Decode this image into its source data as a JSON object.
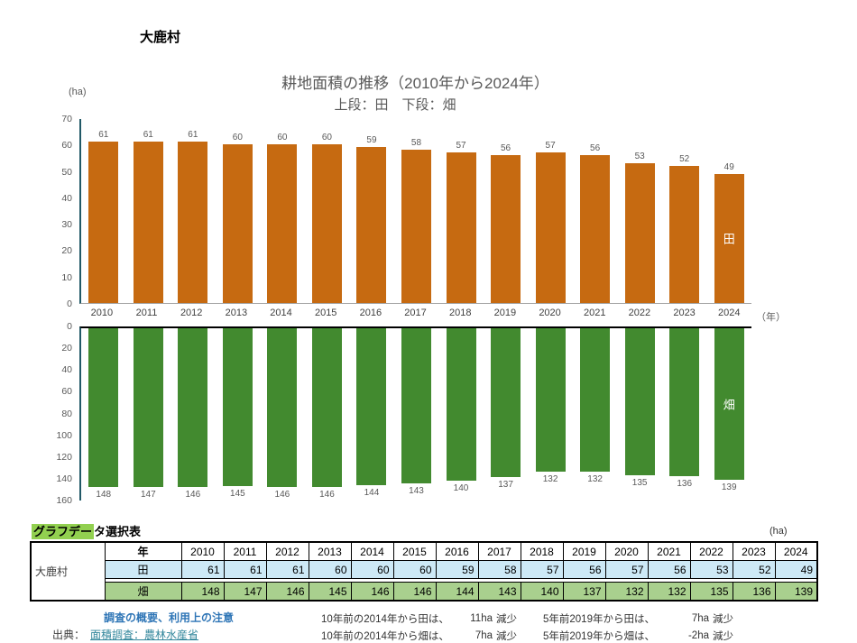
{
  "page": {
    "village": "大鹿村",
    "year_axis_label": "（年）"
  },
  "chart_data": {
    "type": "bar",
    "title": "耕地面積の推移（2010年から2024年）",
    "subtitle": "上段：田　下段：畑",
    "unit": "(ha)",
    "xlabel": "（年）",
    "grid": false,
    "legend_position": "inside-last-bar",
    "categories": [
      "2010",
      "2011",
      "2012",
      "2013",
      "2014",
      "2015",
      "2016",
      "2017",
      "2018",
      "2019",
      "2020",
      "2021",
      "2022",
      "2023",
      "2024"
    ],
    "series": [
      {
        "name": "田",
        "values": [
          61,
          61,
          61,
          60,
          60,
          60,
          59,
          58,
          57,
          56,
          57,
          56,
          53,
          52,
          49
        ],
        "color": "#C66A11",
        "ylim": [
          0,
          70
        ],
        "ticks": [
          0,
          10,
          20,
          30,
          40,
          50,
          60,
          70
        ],
        "inverted": false
      },
      {
        "name": "畑",
        "values": [
          148,
          147,
          146,
          145,
          146,
          146,
          144,
          143,
          140,
          137,
          132,
          132,
          135,
          136,
          139
        ],
        "color": "#428A2F",
        "ylim": [
          0,
          160
        ],
        "ticks": [
          0,
          20,
          40,
          60,
          80,
          100,
          120,
          140,
          160
        ],
        "inverted": true
      }
    ]
  },
  "table": {
    "title_highlight": "グラフデー",
    "title_rest": "タ選択表",
    "unit": "(ha)",
    "village": "大鹿村",
    "year_label": "年",
    "years": [
      "2010",
      "2011",
      "2012",
      "2013",
      "2014",
      "2015",
      "2016",
      "2017",
      "2018",
      "2019",
      "2020",
      "2021",
      "2022",
      "2023",
      "2024"
    ],
    "rows": [
      {
        "label": "田",
        "values": [
          61,
          61,
          61,
          60,
          60,
          60,
          59,
          58,
          57,
          56,
          57,
          56,
          53,
          52,
          49
        ]
      },
      {
        "label": "畑",
        "values": [
          148,
          147,
          146,
          145,
          146,
          146,
          144,
          143,
          140,
          137,
          132,
          132,
          135,
          136,
          139
        ]
      }
    ]
  },
  "footer": {
    "survey_link": "調査の概要、利用上の注意",
    "source_label": "出典：",
    "source_link": "面積調査：農林水産省",
    "notes": [
      [
        "10年前の2014年から田は、",
        "11ha",
        "減少",
        "5年前2019年から田は、",
        "7ha",
        "減少"
      ],
      [
        "10年前の2014年から畑は、",
        "7ha",
        "減少",
        "5年前2019年から畑は、",
        "-2ha",
        "減少"
      ]
    ]
  }
}
